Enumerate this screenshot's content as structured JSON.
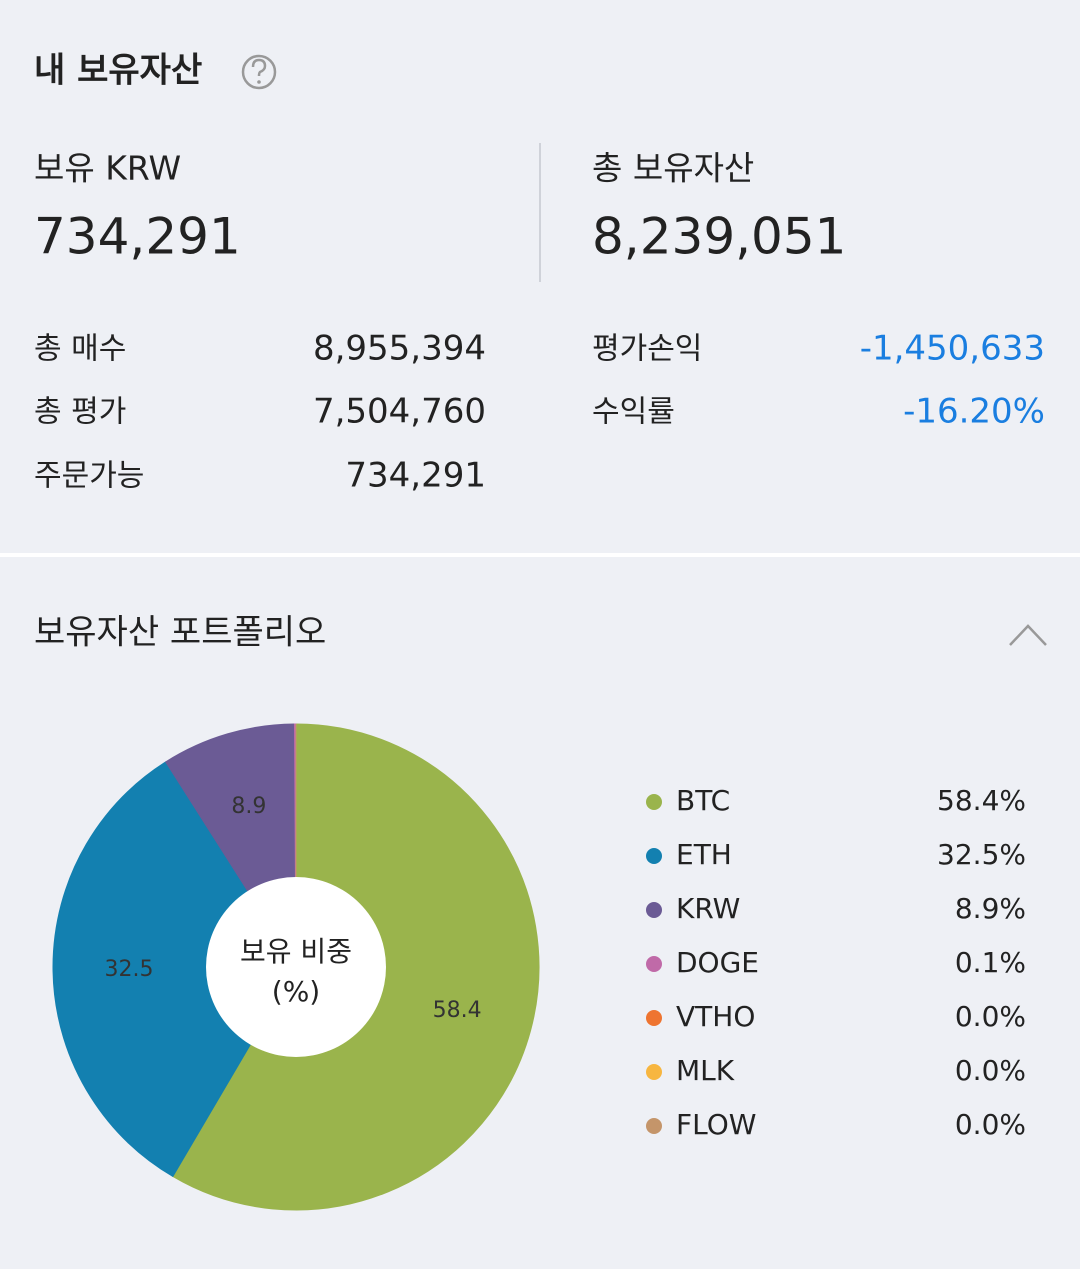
{
  "header": {
    "title": "내 보유자산"
  },
  "summary": {
    "krw": {
      "label": "보유 KRW",
      "value": "734,291"
    },
    "total": {
      "label": "총 보유자산",
      "value": "8,239,051"
    },
    "left_rows": [
      [
        "총 매수",
        "8,955,394"
      ],
      [
        "총 평가",
        "7,504,760"
      ],
      [
        "주문가능",
        "734,291"
      ]
    ],
    "right_rows": [
      [
        "평가손익",
        "-1,450,633"
      ],
      [
        "수익률",
        "-16.20%"
      ]
    ]
  },
  "chart_data": {
    "type": "donut",
    "title": "보유자산 포트폴리오",
    "center_label": [
      "보유 비중",
      "(%)"
    ],
    "categories": [
      "BTC",
      "ETH",
      "KRW",
      "DOGE",
      "VTHO",
      "MLK",
      "FLOW"
    ],
    "values": [
      58.4,
      32.5,
      8.9,
      0.1,
      0.0,
      0.0,
      0.0
    ],
    "value_labels": [
      "58.4%",
      "32.5%",
      "8.9%",
      "0.1%",
      "0.0%",
      "0.0%",
      "0.0%"
    ],
    "colors": [
      "#9ab44c",
      "#1380b0",
      "#6b5b95",
      "#c06aa8",
      "#ee7430",
      "#f7b640",
      "#c4956a"
    ]
  }
}
